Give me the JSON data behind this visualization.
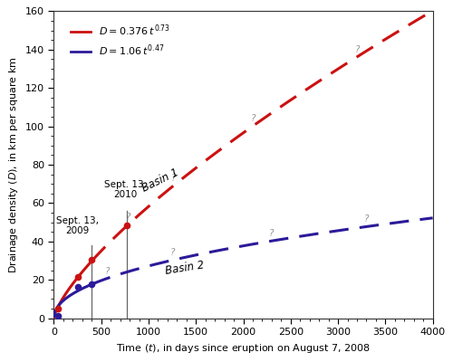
{
  "xlim": [
    0,
    4000
  ],
  "ylim": [
    0,
    160
  ],
  "xticks": [
    0,
    500,
    1000,
    1500,
    2000,
    2500,
    3000,
    3500,
    4000
  ],
  "yticks": [
    0,
    20,
    40,
    60,
    80,
    100,
    120,
    140,
    160
  ],
  "basin1_color": "#cc1111",
  "basin2_color": "#2b1a9a",
  "basin1_coeff": 0.3761,
  "basin1_exp": 0.73,
  "basin2_coeff": 1.06,
  "basin2_exp": 0.47,
  "basin1_data_t": [
    41,
    254,
    402
  ],
  "basin1_data_D": [
    5.0,
    21.5,
    30.5
  ],
  "basin2_data_t": [
    41,
    254,
    402
  ],
  "basin2_data_D": [
    1.5,
    16.5,
    18.0
  ],
  "solid_end_t": 402,
  "sept13_2009_t": 402,
  "sept13_2010_t": 767,
  "basin1_data_extra_t": [
    767
  ],
  "basin1_data_extra_D": [
    48.5
  ],
  "qmarks_basin1_t": [
    780,
    1260,
    2100,
    3200
  ],
  "qmarks_basin2_t": [
    560,
    1250,
    2300,
    3300
  ],
  "basin1_label_t": 1120,
  "basin1_label_D": 72,
  "basin1_label_rot": 26,
  "basin2_label_t": 1380,
  "basin2_label_D": 26,
  "basin2_label_rot": 9,
  "background_color": "#ffffff"
}
